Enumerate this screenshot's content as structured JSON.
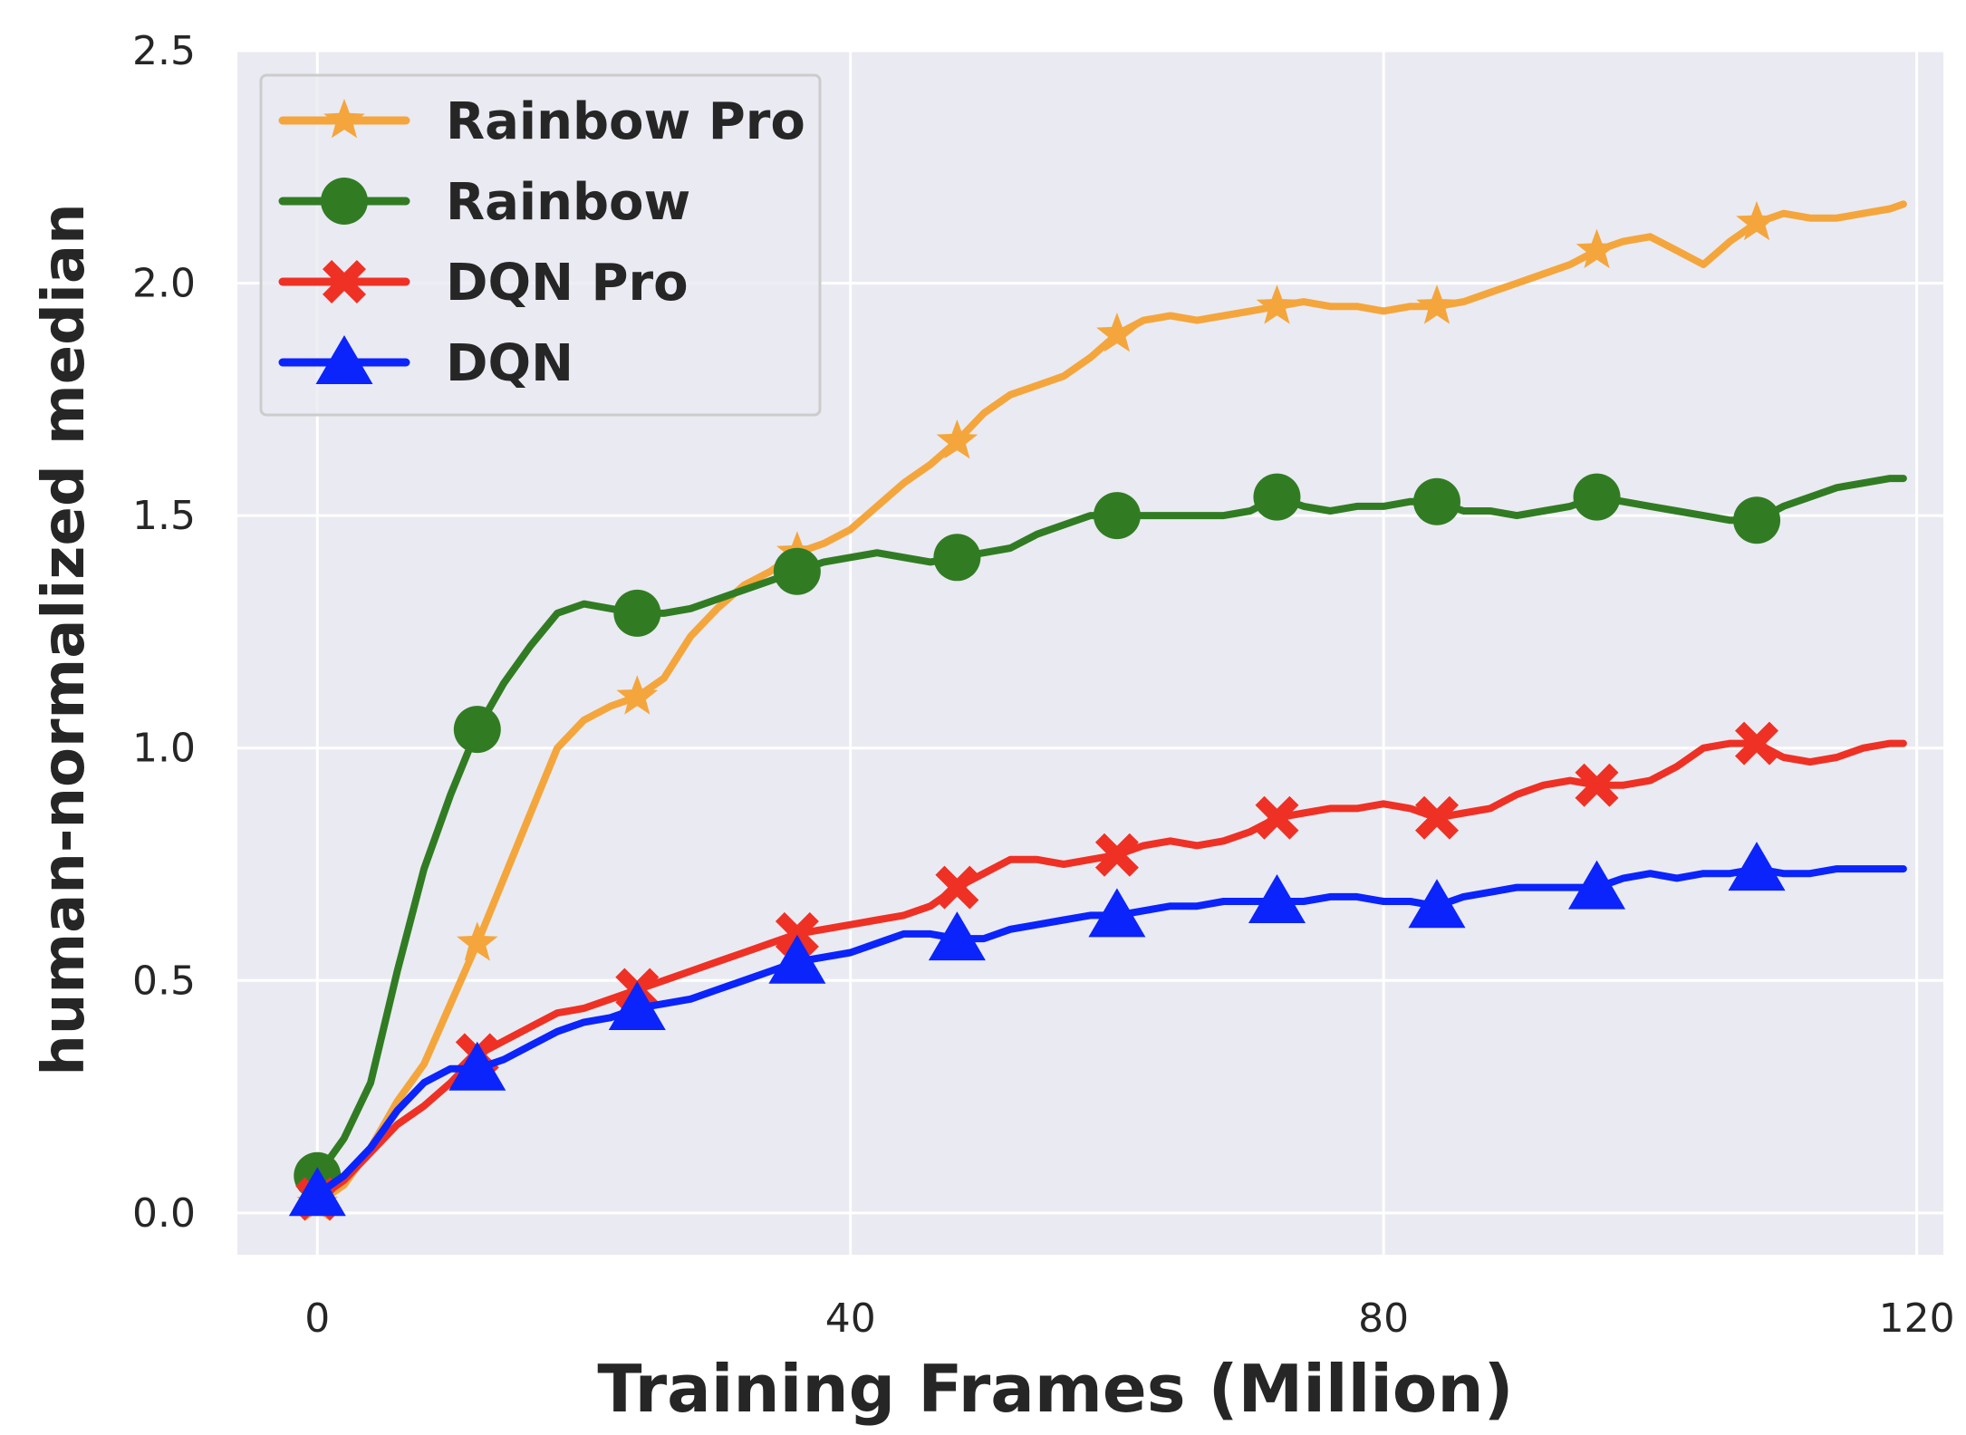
{
  "chart_data": {
    "type": "line",
    "title": "",
    "xlabel": "Training Frames (Million)",
    "ylabel": "human-normalized median",
    "xlim": [
      -6,
      122
    ],
    "ylim": [
      -0.09,
      2.5
    ],
    "xticks": [
      0,
      40,
      80,
      120
    ],
    "xtick_labels": [
      "0",
      "40",
      "80",
      "120"
    ],
    "yticks": [
      0.0,
      0.5,
      1.0,
      1.5,
      2.0,
      2.5
    ],
    "ytick_labels": [
      "0.0",
      "0.5",
      "1.0",
      "1.5",
      "2.0",
      "2.5"
    ],
    "grid": true,
    "legend_position": "top-left",
    "series": [
      {
        "name": "Rainbow Pro",
        "color": "#f4a63c",
        "marker": "star",
        "x": [
          0,
          2,
          4,
          6,
          8,
          10,
          12,
          14,
          16,
          18,
          20,
          22,
          24,
          26,
          28,
          30,
          32,
          34,
          36,
          38,
          40,
          42,
          44,
          46,
          48,
          50,
          52,
          54,
          56,
          58,
          60,
          62,
          64,
          66,
          68,
          70,
          72,
          74,
          76,
          78,
          80,
          82,
          84,
          86,
          88,
          90,
          92,
          94,
          96,
          98,
          100,
          102,
          104,
          106,
          108,
          110,
          112,
          114,
          116,
          118,
          119
        ],
        "y": [
          0.02,
          0.06,
          0.14,
          0.24,
          0.32,
          0.45,
          0.58,
          0.72,
          0.86,
          1.0,
          1.06,
          1.09,
          1.11,
          1.15,
          1.24,
          1.3,
          1.35,
          1.38,
          1.42,
          1.44,
          1.47,
          1.52,
          1.57,
          1.61,
          1.66,
          1.72,
          1.76,
          1.78,
          1.8,
          1.84,
          1.89,
          1.92,
          1.93,
          1.92,
          1.93,
          1.94,
          1.95,
          1.96,
          1.95,
          1.95,
          1.94,
          1.95,
          1.95,
          1.96,
          1.98,
          2.0,
          2.02,
          2.04,
          2.07,
          2.09,
          2.1,
          2.07,
          2.04,
          2.09,
          2.13,
          2.15,
          2.14,
          2.14,
          2.15,
          2.16,
          2.17
        ],
        "marker_x": [
          0,
          12,
          24,
          36,
          48,
          60,
          72,
          84,
          96,
          108
        ],
        "marker_y": [
          0.02,
          0.58,
          1.11,
          1.42,
          1.66,
          1.89,
          1.95,
          1.95,
          2.07,
          2.13
        ]
      },
      {
        "name": "Rainbow",
        "color": "#317c23",
        "marker": "circle",
        "x": [
          0,
          2,
          4,
          6,
          8,
          10,
          12,
          14,
          16,
          18,
          20,
          22,
          24,
          26,
          28,
          30,
          32,
          34,
          36,
          38,
          40,
          42,
          44,
          46,
          48,
          50,
          52,
          54,
          56,
          58,
          60,
          62,
          64,
          66,
          68,
          70,
          72,
          74,
          76,
          78,
          80,
          82,
          84,
          86,
          88,
          90,
          92,
          94,
          96,
          98,
          100,
          102,
          104,
          106,
          108,
          110,
          112,
          114,
          116,
          118,
          119
        ],
        "y": [
          0.08,
          0.16,
          0.28,
          0.52,
          0.74,
          0.9,
          1.04,
          1.14,
          1.22,
          1.29,
          1.31,
          1.3,
          1.29,
          1.29,
          1.3,
          1.32,
          1.34,
          1.36,
          1.38,
          1.4,
          1.41,
          1.42,
          1.41,
          1.4,
          1.41,
          1.42,
          1.43,
          1.46,
          1.48,
          1.5,
          1.5,
          1.5,
          1.5,
          1.5,
          1.5,
          1.51,
          1.54,
          1.52,
          1.51,
          1.52,
          1.52,
          1.53,
          1.53,
          1.51,
          1.51,
          1.5,
          1.51,
          1.52,
          1.54,
          1.53,
          1.52,
          1.51,
          1.5,
          1.49,
          1.49,
          1.52,
          1.54,
          1.56,
          1.57,
          1.58,
          1.58
        ],
        "marker_x": [
          0,
          12,
          24,
          36,
          48,
          60,
          72,
          84,
          96,
          108
        ],
        "marker_y": [
          0.08,
          1.04,
          1.29,
          1.38,
          1.41,
          1.5,
          1.54,
          1.53,
          1.54,
          1.49
        ]
      },
      {
        "name": "DQN Pro",
        "color": "#ee3124",
        "marker": "x",
        "x": [
          0,
          2,
          4,
          6,
          8,
          10,
          12,
          14,
          16,
          18,
          20,
          22,
          24,
          26,
          28,
          30,
          32,
          34,
          36,
          38,
          40,
          42,
          44,
          46,
          48,
          50,
          52,
          54,
          56,
          58,
          60,
          62,
          64,
          66,
          68,
          70,
          72,
          74,
          76,
          78,
          80,
          82,
          84,
          86,
          88,
          90,
          92,
          94,
          96,
          98,
          100,
          102,
          104,
          106,
          108,
          110,
          112,
          114,
          116,
          118,
          119
        ],
        "y": [
          0.03,
          0.07,
          0.13,
          0.19,
          0.23,
          0.28,
          0.34,
          0.37,
          0.4,
          0.43,
          0.44,
          0.46,
          0.48,
          0.5,
          0.52,
          0.54,
          0.56,
          0.58,
          0.6,
          0.61,
          0.62,
          0.63,
          0.64,
          0.66,
          0.7,
          0.73,
          0.76,
          0.76,
          0.75,
          0.76,
          0.77,
          0.79,
          0.8,
          0.79,
          0.8,
          0.82,
          0.85,
          0.86,
          0.87,
          0.87,
          0.88,
          0.87,
          0.85,
          0.86,
          0.87,
          0.9,
          0.92,
          0.93,
          0.92,
          0.92,
          0.93,
          0.96,
          1.0,
          1.01,
          1.01,
          0.98,
          0.97,
          0.98,
          1.0,
          1.01,
          1.01
        ],
        "marker_x": [
          0,
          12,
          24,
          36,
          48,
          60,
          72,
          84,
          96,
          108
        ],
        "marker_y": [
          0.03,
          0.34,
          0.48,
          0.6,
          0.7,
          0.77,
          0.85,
          0.85,
          0.92,
          1.01
        ]
      },
      {
        "name": "DQN",
        "color": "#0b24fb",
        "marker": "triangle",
        "x": [
          0,
          2,
          4,
          6,
          8,
          10,
          12,
          14,
          16,
          18,
          20,
          22,
          24,
          26,
          28,
          30,
          32,
          34,
          36,
          38,
          40,
          42,
          44,
          46,
          48,
          50,
          52,
          54,
          56,
          58,
          60,
          62,
          64,
          66,
          68,
          70,
          72,
          74,
          76,
          78,
          80,
          82,
          84,
          86,
          88,
          90,
          92,
          94,
          96,
          98,
          100,
          102,
          104,
          106,
          108,
          110,
          112,
          114,
          116,
          118,
          119
        ],
        "y": [
          0.04,
          0.08,
          0.14,
          0.22,
          0.28,
          0.31,
          0.31,
          0.33,
          0.36,
          0.39,
          0.41,
          0.42,
          0.44,
          0.45,
          0.46,
          0.48,
          0.5,
          0.52,
          0.54,
          0.55,
          0.56,
          0.58,
          0.6,
          0.6,
          0.59,
          0.59,
          0.61,
          0.62,
          0.63,
          0.64,
          0.64,
          0.65,
          0.66,
          0.66,
          0.67,
          0.67,
          0.67,
          0.67,
          0.68,
          0.68,
          0.67,
          0.67,
          0.66,
          0.68,
          0.69,
          0.7,
          0.7,
          0.7,
          0.7,
          0.72,
          0.73,
          0.72,
          0.73,
          0.73,
          0.74,
          0.73,
          0.73,
          0.74,
          0.74,
          0.74,
          0.74
        ],
        "marker_x": [
          0,
          12,
          24,
          36,
          48,
          60,
          72,
          84,
          96,
          108
        ],
        "marker_y": [
          0.04,
          0.31,
          0.44,
          0.54,
          0.59,
          0.64,
          0.67,
          0.66,
          0.7,
          0.74
        ]
      }
    ]
  }
}
